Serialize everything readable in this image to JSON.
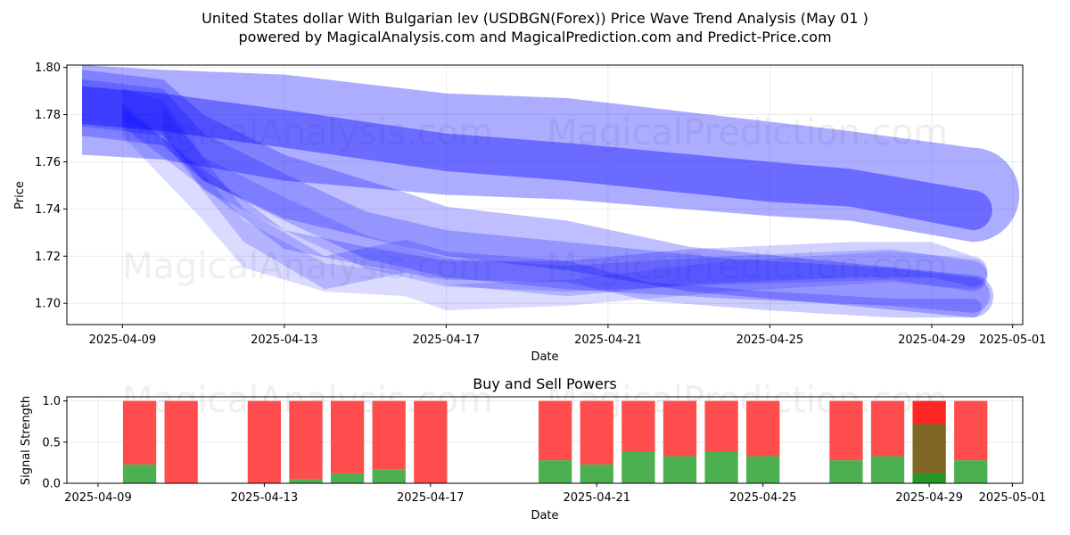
{
  "title_line1": "United States dollar With Bulgarian lev (USDBGN(Forex)) Price Wave Trend Analysis (May 01 )",
  "title_line2": "powered by MagicalAnalysis.com and MagicalPrediction.com and Predict-Price.com",
  "watermarks": [
    "MagicalAnalysis.com",
    "MagicalPrediction.com"
  ],
  "chart_data": [
    {
      "type": "area",
      "title": "",
      "xlabel": "Date",
      "ylabel": "Price",
      "xlim": [
        "2025-04-07T15:00",
        "2025-05-01T06:00"
      ],
      "ylim": [
        1.691,
        1.801
      ],
      "grid": true,
      "x_ticks": [
        "2025-04-09",
        "2025-04-13",
        "2025-04-17",
        "2025-04-21",
        "2025-04-25",
        "2025-04-29",
        "2025-05-01"
      ],
      "y_ticks": [
        "1.70",
        "1.72",
        "1.74",
        "1.76",
        "1.78",
        "1.80"
      ],
      "band_color": "#0000ff",
      "bands": [
        {
          "x": [
            "2025-04-08",
            "2025-04-10",
            "2025-04-13",
            "2025-04-17",
            "2025-04-20",
            "2025-04-25",
            "2025-04-27",
            "2025-04-30"
          ],
          "upper": [
            1.801,
            1.799,
            1.797,
            1.789,
            1.787,
            1.777,
            1.773,
            1.766
          ],
          "lower": [
            1.763,
            1.761,
            1.752,
            1.746,
            1.744,
            1.737,
            1.735,
            1.726
          ],
          "opacity": 0.32
        },
        {
          "x": [
            "2025-04-08",
            "2025-04-10",
            "2025-04-13",
            "2025-04-17",
            "2025-04-20",
            "2025-04-25",
            "2025-04-27",
            "2025-04-30"
          ],
          "upper": [
            1.792,
            1.789,
            1.782,
            1.772,
            1.768,
            1.76,
            1.757,
            1.748
          ],
          "lower": [
            1.776,
            1.773,
            1.766,
            1.756,
            1.752,
            1.743,
            1.741,
            1.731
          ],
          "opacity": 0.38
        },
        {
          "x": [
            "2025-04-08",
            "2025-04-10",
            "2025-04-11",
            "2025-04-13",
            "2025-04-16",
            "2025-04-17",
            "2025-04-20",
            "2025-04-23",
            "2025-04-27",
            "2025-04-30"
          ],
          "upper": [
            1.799,
            1.795,
            1.78,
            1.763,
            1.747,
            1.741,
            1.735,
            1.724,
            1.717,
            1.712
          ],
          "lower": [
            1.771,
            1.767,
            1.752,
            1.736,
            1.724,
            1.72,
            1.714,
            1.705,
            1.699,
            1.694
          ],
          "opacity": 0.25
        },
        {
          "x": [
            "2025-04-08",
            "2025-04-10",
            "2025-04-11",
            "2025-04-13",
            "2025-04-15",
            "2025-04-17",
            "2025-04-20",
            "2025-04-24",
            "2025-04-28",
            "2025-04-30"
          ],
          "upper": [
            1.795,
            1.791,
            1.772,
            1.755,
            1.739,
            1.731,
            1.726,
            1.719,
            1.715,
            1.711
          ],
          "lower": [
            1.775,
            1.771,
            1.752,
            1.735,
            1.719,
            1.711,
            1.706,
            1.702,
            1.699,
            1.696
          ],
          "opacity": 0.22
        },
        {
          "x": [
            "2025-04-09",
            "2025-04-10",
            "2025-04-11",
            "2025-04-13",
            "2025-04-15",
            "2025-04-17",
            "2025-04-20",
            "2025-04-24",
            "2025-04-28",
            "2025-04-30"
          ],
          "upper": [
            1.791,
            1.786,
            1.762,
            1.745,
            1.729,
            1.719,
            1.716,
            1.72,
            1.723,
            1.718
          ],
          "lower": [
            1.777,
            1.772,
            1.748,
            1.731,
            1.715,
            1.707,
            1.705,
            1.708,
            1.71,
            1.705
          ],
          "opacity": 0.16
        },
        {
          "x": [
            "2025-04-09",
            "2025-04-11",
            "2025-04-12",
            "2025-04-14",
            "2025-04-16",
            "2025-04-17",
            "2025-04-20",
            "2025-04-24",
            "2025-04-28",
            "2025-04-30"
          ],
          "upper": [
            1.785,
            1.755,
            1.735,
            1.717,
            1.713,
            1.708,
            1.71,
            1.718,
            1.722,
            1.719
          ],
          "lower": [
            1.771,
            1.735,
            1.715,
            1.705,
            1.703,
            1.697,
            1.699,
            1.705,
            1.709,
            1.706
          ],
          "opacity": 0.14
        },
        {
          "x": [
            "2025-04-10",
            "2025-04-12",
            "2025-04-14",
            "2025-04-16",
            "2025-04-17",
            "2025-04-20",
            "2025-04-23",
            "2025-04-27",
            "2025-04-29",
            "2025-04-30"
          ],
          "upper": [
            1.783,
            1.74,
            1.72,
            1.727,
            1.722,
            1.718,
            1.723,
            1.726,
            1.726,
            1.72
          ],
          "lower": [
            1.769,
            1.726,
            1.706,
            1.713,
            1.708,
            1.703,
            1.708,
            1.711,
            1.711,
            1.707
          ],
          "opacity": 0.18
        },
        {
          "x": [
            "2025-04-09",
            "2025-04-11",
            "2025-04-13",
            "2025-04-15",
            "2025-04-17",
            "2025-04-20",
            "2025-04-22",
            "2025-04-25",
            "2025-04-28",
            "2025-04-30"
          ],
          "upper": [
            1.783,
            1.757,
            1.731,
            1.724,
            1.718,
            1.718,
            1.709,
            1.705,
            1.702,
            1.702
          ],
          "lower": [
            1.775,
            1.749,
            1.723,
            1.716,
            1.71,
            1.709,
            1.701,
            1.697,
            1.694,
            1.694
          ],
          "opacity": 0.2
        }
      ]
    },
    {
      "type": "bar",
      "title": "Buy and Sell Powers",
      "xlabel": "Date",
      "ylabel": "Signal Strength",
      "xlim": [
        "2025-04-08T06:00",
        "2025-05-01T06:00"
      ],
      "ylim": [
        0,
        1.05
      ],
      "grid": true,
      "x_ticks": [
        "2025-04-09",
        "2025-04-13",
        "2025-04-17",
        "2025-04-21",
        "2025-04-25",
        "2025-04-29",
        "2025-05-01"
      ],
      "y_ticks": [
        "0.0",
        "0.5",
        "1.0"
      ],
      "buy_color": "#4caf50",
      "sell_color": "#ff4d4d",
      "bars": [
        {
          "date": "2025-04-10",
          "buy": 0.23,
          "sell": 0.77
        },
        {
          "date": "2025-04-11",
          "buy": 0.0,
          "sell": 1.0
        },
        {
          "date": "2025-04-13",
          "buy": 0.0,
          "sell": 1.0
        },
        {
          "date": "2025-04-14",
          "buy": 0.05,
          "sell": 0.95
        },
        {
          "date": "2025-04-15",
          "buy": 0.12,
          "sell": 0.88
        },
        {
          "date": "2025-04-16",
          "buy": 0.17,
          "sell": 0.83
        },
        {
          "date": "2025-04-17",
          "buy": 0.0,
          "sell": 1.0
        },
        {
          "date": "2025-04-20",
          "buy": 0.28,
          "sell": 0.72
        },
        {
          "date": "2025-04-21",
          "buy": 0.23,
          "sell": 0.77
        },
        {
          "date": "2025-04-22",
          "buy": 0.39,
          "sell": 0.61
        },
        {
          "date": "2025-04-23",
          "buy": 0.33,
          "sell": 0.67
        },
        {
          "date": "2025-04-24",
          "buy": 0.39,
          "sell": 0.61
        },
        {
          "date": "2025-04-25",
          "buy": 0.33,
          "sell": 0.67
        },
        {
          "date": "2025-04-27",
          "buy": 0.28,
          "sell": 0.72
        },
        {
          "date": "2025-04-28",
          "buy": 0.33,
          "sell": 0.67
        },
        {
          "date": "2025-04-29",
          "buy": 0.12,
          "sell": 0.88,
          "overlay": {
            "buy": 0.72,
            "sell": 0.28
          }
        },
        {
          "date": "2025-04-30",
          "buy": 0.28,
          "sell": 0.72
        }
      ]
    }
  ]
}
